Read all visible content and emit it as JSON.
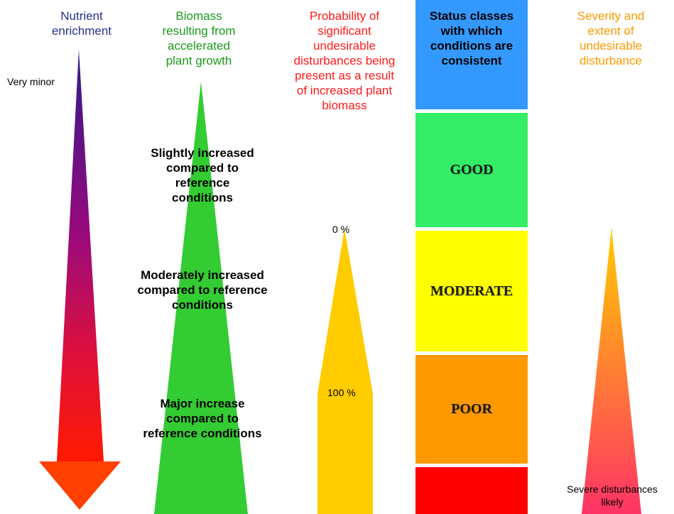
{
  "columns": {
    "nutrient": {
      "header": "Nutrient\nenrichment",
      "top_label": "Very minor"
    },
    "biomass": {
      "header": "Biomass\nresulting from\naccelerated\nplant growth",
      "levels": [
        "Slightly increased\ncompared to\nreference\nconditions",
        "Moderately  increased\ncompared to reference\nconditions",
        "Major increase\ncompared to\nreference conditions"
      ]
    },
    "probability": {
      "header": "Probability of\nsignificant\nundesirable\ndisturbances being\npresent as a result\nof increased plant\nbiomass",
      "top_label": "0 %",
      "bottom_label": "100 %"
    },
    "status": {
      "header": "Status classes\nwith which\nconditions are\nconsistent",
      "classes": [
        "GOOD",
        "MODERATE",
        "POOR"
      ]
    },
    "severity": {
      "header": "Severity and\nextent of\nundesirable\ndisturbance",
      "bottom_label": "Severe disturbances\nlikely"
    }
  },
  "colors": {
    "nutrient_header": "#2e2e8f",
    "biomass_header": "#1a9a1a",
    "probability_header": "#ff1a1a",
    "severity_header": "#ff9900",
    "arrow_top": "#3a1a8a",
    "arrow_mid": "#a0007a",
    "arrow_bottom": "#ff1a00",
    "arrow_head": "#ff4000",
    "green_wedge": "#33cc33",
    "probability_fill": "#ffcc00",
    "high_status": "#3399ff",
    "good": "#33ee66",
    "moderate": "#ffff00",
    "poor": "#ff9900",
    "bad": "#ff0000",
    "severity_top": "#ffcc00",
    "severity_bottom": "#ff3366"
  }
}
